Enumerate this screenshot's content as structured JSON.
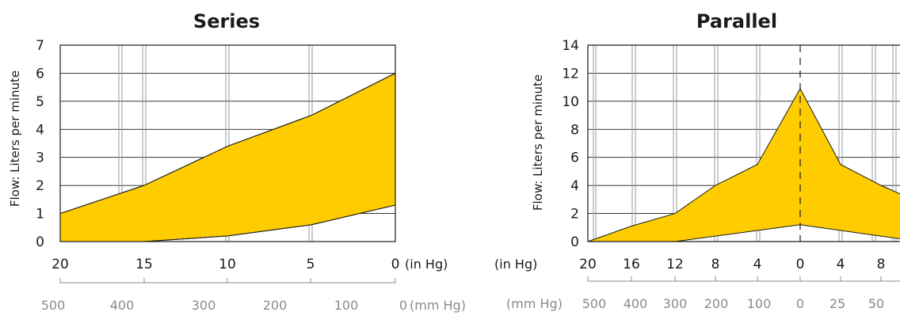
{
  "chart_data": [
    {
      "type": "area",
      "title": "Series",
      "ylabel": "Flow: Liters per minute",
      "ylim": [
        0,
        7
      ],
      "yticks": [
        "0",
        "1",
        "2",
        "3",
        "4",
        "5",
        "6",
        "7"
      ],
      "x_primary": {
        "ticks": [
          "20",
          "15",
          "10",
          "5",
          "0"
        ],
        "unit": "(in Hg)"
      },
      "x_secondary": {
        "ticks": [
          "500",
          "400",
          "300",
          "200",
          "100",
          "0"
        ],
        "unit": "(mm Hg)"
      },
      "grid": true,
      "series": [
        {
          "x": [
            20,
            15,
            10,
            5,
            4,
            0
          ],
          "values": [
            1.0,
            2.0,
            3.4,
            4.5,
            4.8,
            6.0
          ]
        },
        {
          "x": [
            20,
            15,
            10,
            5,
            0
          ],
          "values": [
            0.0,
            0.0,
            0.2,
            0.6,
            1.3
          ]
        }
      ]
    },
    {
      "type": "area",
      "title": "Parallel",
      "ylabel": "Flow: Liters per minute",
      "ylim": [
        0,
        14
      ],
      "yticks": [
        "0",
        "2",
        "4",
        "6",
        "8",
        "10",
        "12",
        "14"
      ],
      "x_primary": {
        "ticks": [
          "20",
          "16",
          "12",
          "8",
          "4",
          "0",
          "4",
          "8"
        ],
        "unit": "(in Hg)"
      },
      "x_secondary": {
        "ticks": [
          "500",
          "400",
          "300",
          "200",
          "100",
          "0",
          "25",
          "50"
        ],
        "unit": "(mm Hg)"
      },
      "grid": true,
      "series": [
        {
          "x": [
            20,
            16,
            12,
            8,
            4,
            0,
            "4",
            "8",
            "10"
          ],
          "values": [
            0,
            1.1,
            2.0,
            4.0,
            5.5,
            10.9,
            5.5,
            4.0,
            3.4
          ]
        },
        {
          "x": [
            20,
            12,
            0,
            "10"
          ],
          "values": [
            0,
            0,
            1.2,
            0.2
          ]
        }
      ]
    }
  ],
  "colors": {
    "fill": "#FFCC00",
    "line": "#1a1a1a",
    "grid": "#999999",
    "secondary": "#8a8a8a"
  }
}
